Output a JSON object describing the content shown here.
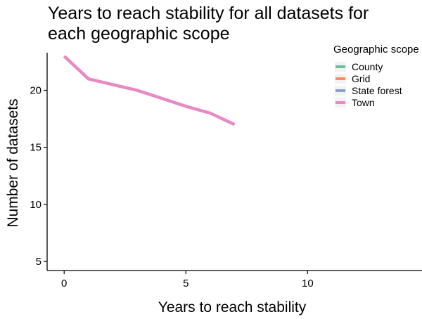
{
  "chart_data": {
    "type": "line",
    "title_lines": [
      "Years to reach stability for all datasets for",
      "each geographic scope"
    ],
    "xlabel": "Years to reach stability",
    "ylabel": "Number of datasets",
    "xlim": [
      -0.7,
      14.7
    ],
    "ylim": [
      4.2,
      23.3
    ],
    "xticks": [
      0,
      5,
      10
    ],
    "yticks": [
      5,
      10,
      15,
      20
    ],
    "grid": false,
    "legend": {
      "title": "Geographic scope",
      "position": "top-right",
      "entries": [
        {
          "label": "County",
          "color": "#66c2a5"
        },
        {
          "label": "Grid",
          "color": "#fc8d62"
        },
        {
          "label": "State forest",
          "color": "#8da0cb"
        },
        {
          "label": "Town",
          "color": "#e78ac3"
        }
      ]
    },
    "series": [
      {
        "name": "Town",
        "color": "#e78ac3",
        "x": [
          0,
          0.5,
          1,
          2,
          3,
          4,
          5,
          6,
          7
        ],
        "y": [
          23,
          22,
          21,
          20.5,
          20,
          19.3,
          18.6,
          18,
          17
        ]
      }
    ]
  }
}
